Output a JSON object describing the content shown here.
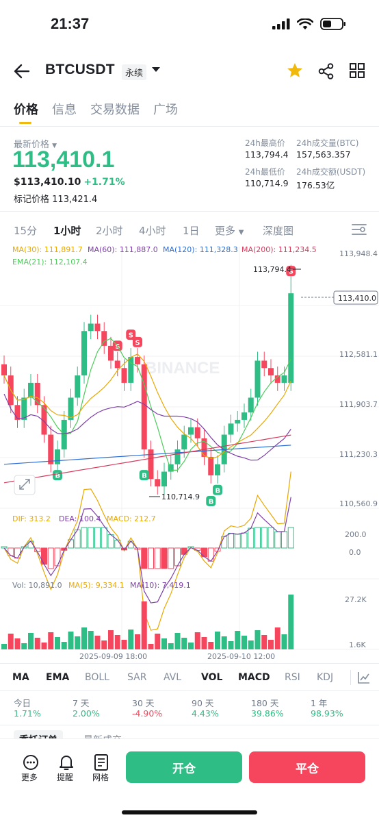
{
  "status": {
    "time": "21:37"
  },
  "header": {
    "symbol": "BTCUSDT",
    "perp_tag": "永续"
  },
  "tabs": [
    "价格",
    "信息",
    "交易数据",
    "广场"
  ],
  "price": {
    "last_label": "最新价格",
    "last": "113,410.1",
    "usd": "$113,410.10",
    "change": "+1.71%",
    "mark_label": "标记价格",
    "mark": "113,421.4"
  },
  "stats": {
    "high_label": "24h最高价",
    "high": "113,794.4",
    "vol_btc_label": "24h成交量(BTC)",
    "vol_btc": "157,563.357",
    "low_label": "24h最低价",
    "low": "110,714.9",
    "vol_usdt_label": "24h成交额(USDT)",
    "vol_usdt": "176.53亿"
  },
  "timeframes": [
    "15分",
    "1小时",
    "2小时",
    "4小时",
    "1日",
    "更多",
    "深度图"
  ],
  "timeframe_active": "1小时",
  "chart": {
    "ma30": "MA(30): 111,891.7",
    "ma60": "MA(60): 111,887.0",
    "ma120": "MA(120): 111,328.3",
    "ma200": "MA(200): 111,234.5",
    "ema21": "EMA(21): 112,107.4",
    "watermark": "BINANCE",
    "axis": [
      "113,948.4",
      "112,581.1",
      "111,903.7",
      "111,230.3",
      "110,560.9"
    ],
    "current_price_tag": "113,410.0",
    "high_marker": "113,794.4",
    "low_marker": "110,714.9",
    "macd": {
      "dif": "DIF: 313.2",
      "dea": "DEA: 100.4",
      "macd": "MACD: 212.7",
      "axis_top": "200.0",
      "axis_zero": "0.0"
    },
    "volume": {
      "vol": "Vol: 10,891.0",
      "ma5": "MA(5): 9,334.1",
      "ma10": "MA(10): 7,419.1",
      "axis_top": "27.2K",
      "axis_bottom": "1.6K"
    },
    "dates": [
      "2025-09-09 18:00",
      "2025-09-10 12:00"
    ],
    "colors": {
      "up": "#2ebd85",
      "down": "#f6465d",
      "ma30": "#e9a800",
      "ma60": "#7e3fa8",
      "ma120": "#2d6fd6",
      "ma200": "#d63b5c",
      "ema21": "#4ccc5a"
    }
  },
  "chart_data": {
    "type": "candlestick",
    "interval": "1小时",
    "x": [
      "2025-09-09 18:00",
      "2025-09-10 12:00"
    ],
    "ohlc_close_series": [
      112300,
      111900,
      111700,
      112000,
      112200,
      111900,
      111500,
      111100,
      111300,
      111700,
      112000,
      112300,
      112900,
      113000,
      112900,
      112700,
      112500,
      112400,
      112200,
      112550,
      112450,
      111300,
      110900,
      110800,
      111000,
      111100,
      111300,
      111500,
      111600,
      111450,
      111200,
      110950,
      111100,
      111500,
      111650,
      111700,
      111800,
      112000,
      112500,
      112400,
      112300,
      112200,
      112300,
      113410
    ],
    "last": 113410.0,
    "high_24h": 113794.4,
    "low_24h": 110714.9,
    "ylim": [
      110560.9,
      113948.4
    ]
  },
  "indicators": [
    "MA",
    "EMA",
    "BOLL",
    "SAR",
    "AVL",
    "VOL",
    "MACD",
    "RSI",
    "KDJ"
  ],
  "indicators_on": [
    "MA",
    "EMA",
    "VOL",
    "MACD"
  ],
  "performance": [
    {
      "label": "今日",
      "value": "1.71%",
      "color": "#2ebd85"
    },
    {
      "label": "7 天",
      "value": "2.00%",
      "color": "#2ebd85"
    },
    {
      "label": "30 天",
      "value": "-4.90%",
      "color": "#f6465d"
    },
    {
      "label": "90 天",
      "value": "4.43%",
      "color": "#2ebd85"
    },
    {
      "label": "180 天",
      "value": "39.86%",
      "color": "#2ebd85"
    },
    {
      "label": "1 年",
      "value": "98.93%",
      "color": "#2ebd85"
    }
  ],
  "orders_tabs": [
    "委托订单",
    "最新成交"
  ],
  "footer": {
    "more": "更多",
    "alert": "提醒",
    "grid": "网格",
    "open": "开仓",
    "close": "平仓"
  }
}
